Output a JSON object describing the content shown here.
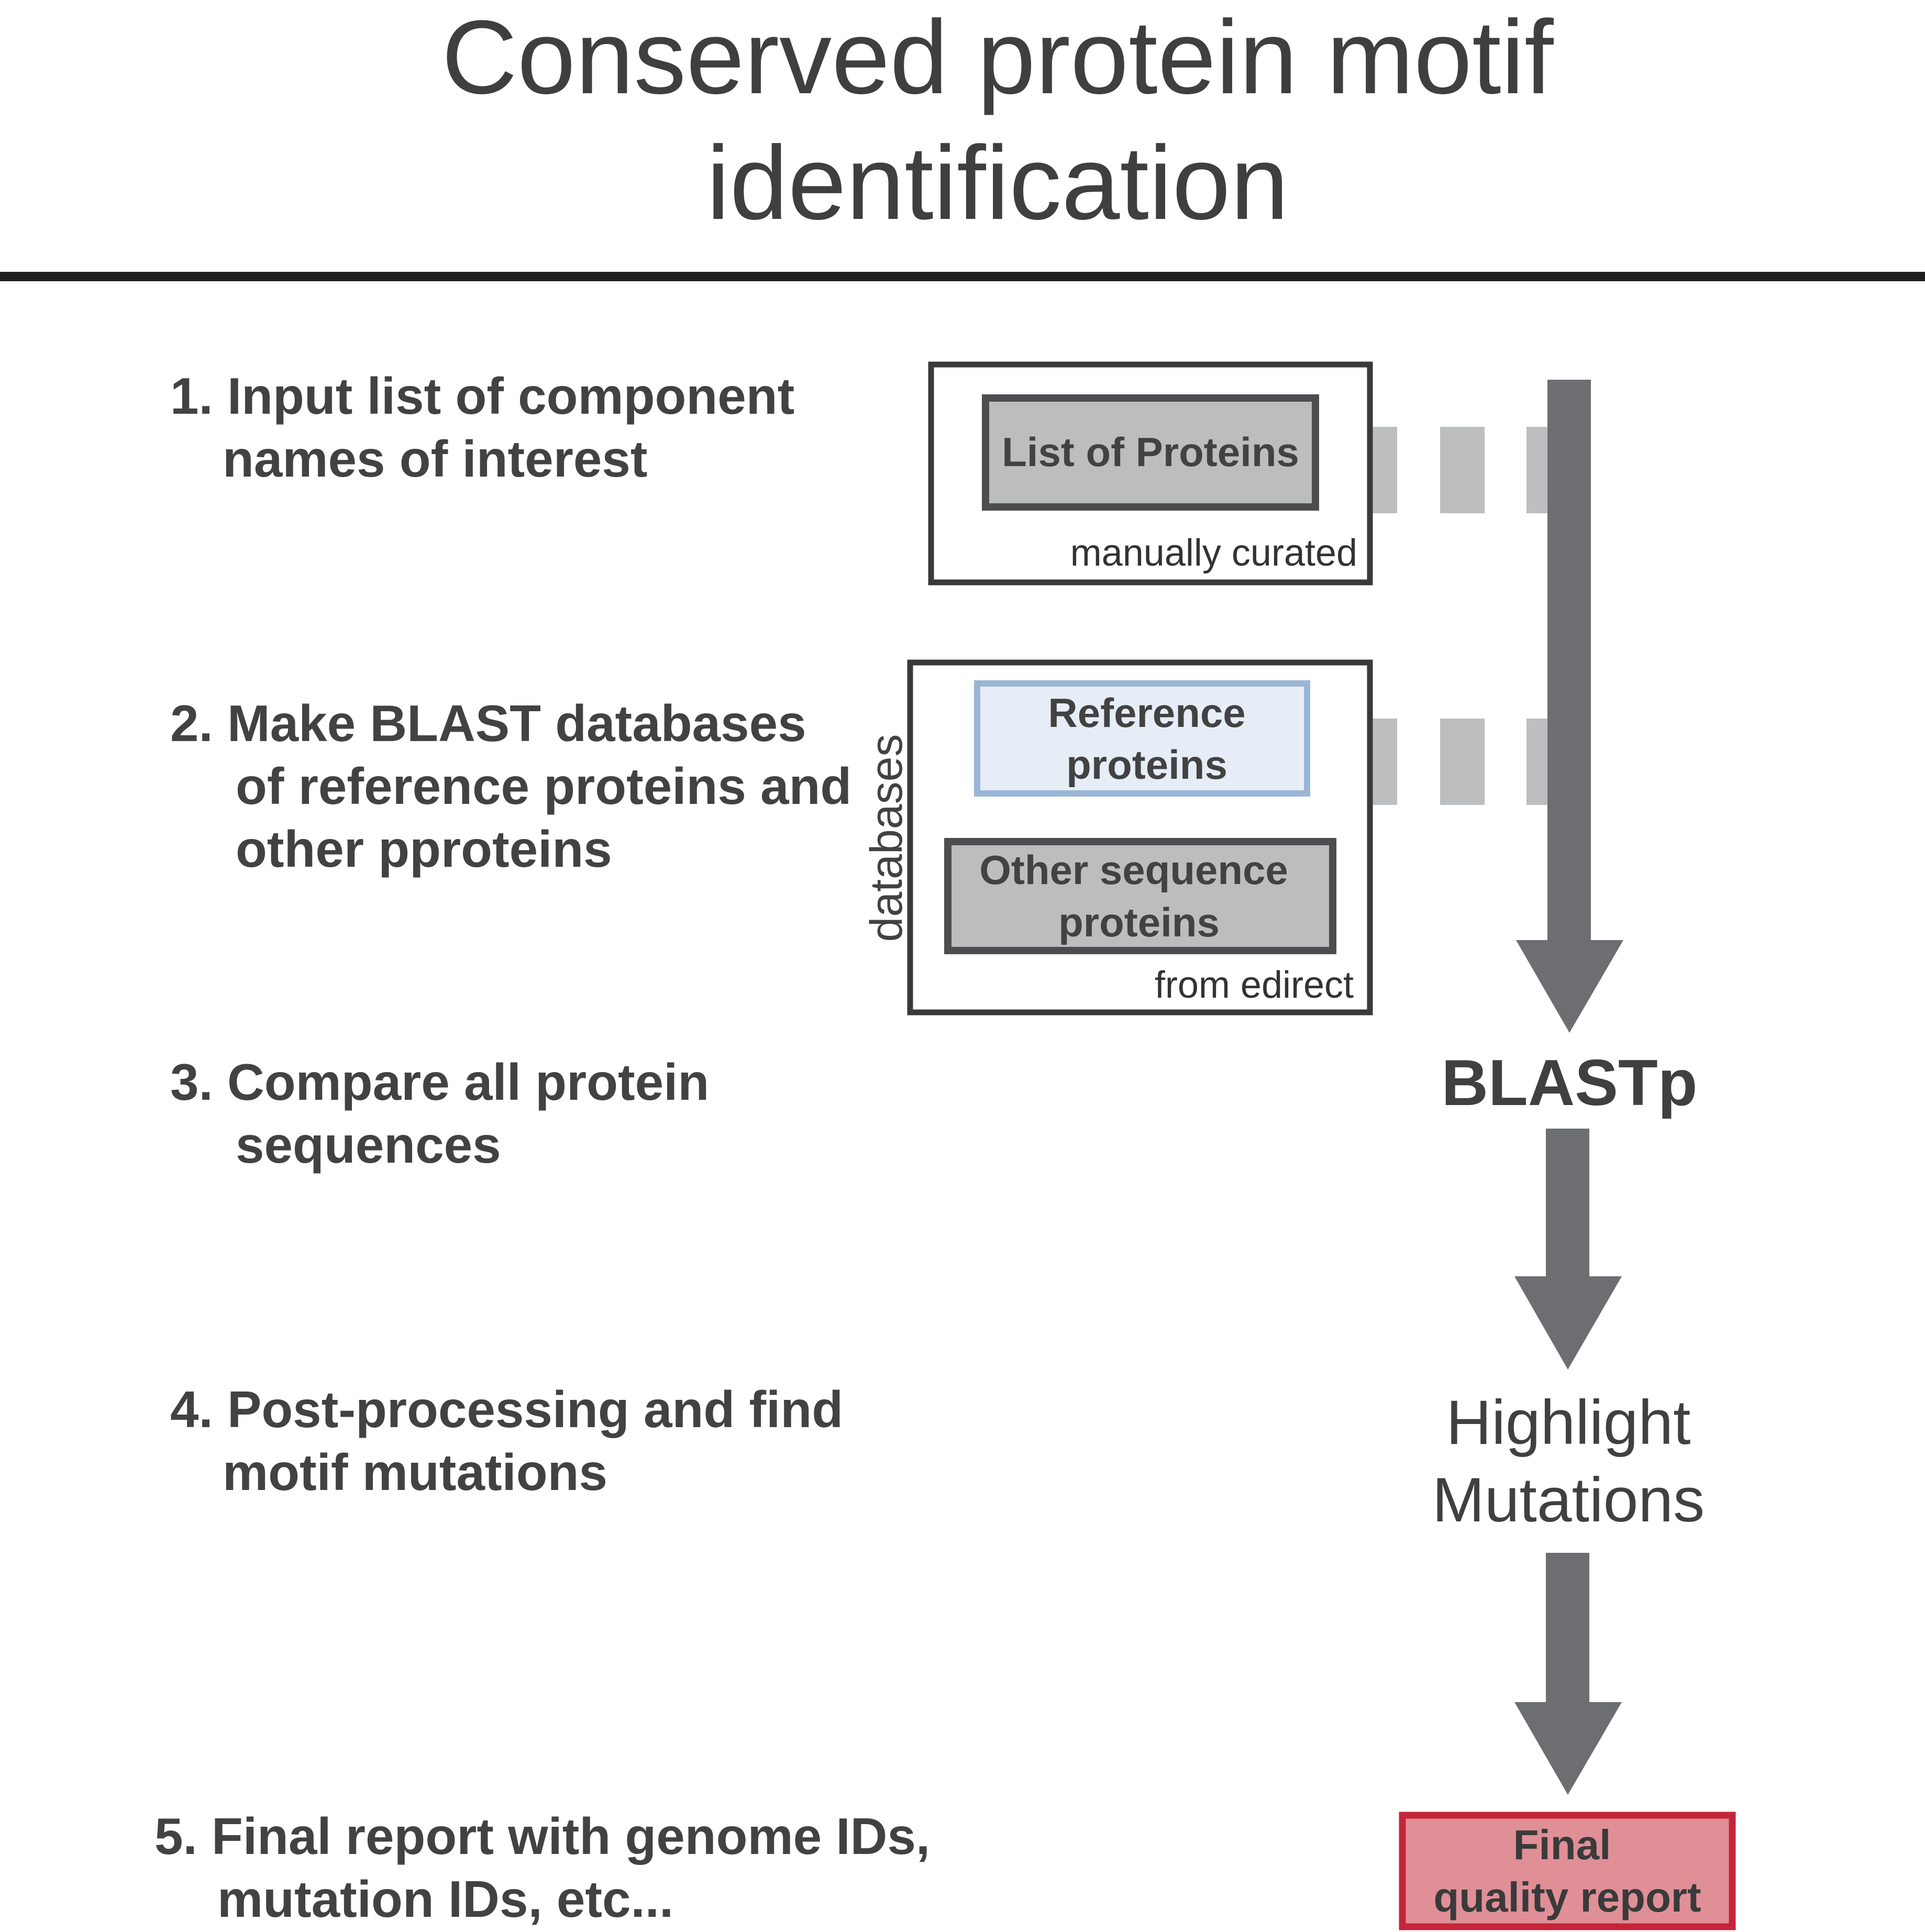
{
  "title": {
    "line1": "Conserved protein motif",
    "line2": "identification"
  },
  "steps": [
    {
      "lines": [
        "1. Input list of component",
        "names of interest"
      ]
    },
    {
      "lines": [
        "2. Make BLAST databases",
        "of reference proteins and",
        "other pproteins"
      ]
    },
    {
      "lines": [
        "3. Compare all protein",
        "sequences"
      ]
    },
    {
      "lines": [
        "4. Post-processing and find",
        "motif mutations"
      ]
    },
    {
      "lines": [
        "5. Final report with genome IDs,",
        "mutation IDs, etc..."
      ]
    }
  ],
  "input_group": {
    "box_label": "List of Proteins",
    "note": "manually curated"
  },
  "database_group": {
    "side_label": "databases",
    "reference_box": [
      "Reference",
      "proteins"
    ],
    "other_box": [
      "Other sequence",
      "proteins"
    ],
    "note": "from edirect"
  },
  "flow": {
    "blast": "BLASTp",
    "highlight": [
      "Highlight",
      "Mutations"
    ],
    "report": [
      "Final",
      "quality report"
    ]
  },
  "colors": {
    "text": "#424243",
    "arrow": "#6d6e71",
    "dash": "#bdbec0",
    "gray_box_fill": "#bcbdbf",
    "gray_box_stroke": "#4d4d4f",
    "reference_fill": "#e6edf7",
    "reference_stroke": "#9ab6d6",
    "report_fill": "#e08f97",
    "report_stroke": "#c5253a"
  }
}
